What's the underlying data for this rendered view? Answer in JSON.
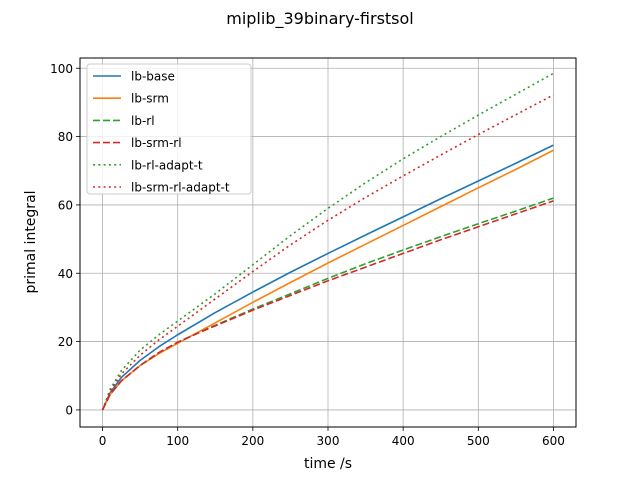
{
  "chart_data": {
    "type": "line",
    "title": "miplib_39binary-firstsol",
    "xlabel": "time /s",
    "ylabel": "primal integral",
    "xlim": [
      -30,
      630
    ],
    "ylim": [
      -5,
      103
    ],
    "xticks": [
      0,
      100,
      200,
      300,
      400,
      500,
      600
    ],
    "yticks": [
      0,
      20,
      40,
      60,
      80,
      100
    ],
    "grid": true,
    "legend_position": "top-left",
    "series": [
      {
        "name": "lb-base",
        "color": "#1f77b4",
        "style": "solid",
        "x": [
          0,
          10,
          25,
          50,
          75,
          100,
          150,
          200,
          250,
          300,
          350,
          400,
          450,
          500,
          550,
          600
        ],
        "y": [
          0,
          5,
          9.5,
          14.5,
          18.5,
          22,
          28.5,
          34.5,
          40.3,
          45.8,
          51.2,
          56.5,
          61.8,
          67,
          72.2,
          77.5
        ]
      },
      {
        "name": "lb-srm",
        "color": "#ff7f0e",
        "style": "solid",
        "x": [
          0,
          10,
          25,
          50,
          75,
          100,
          150,
          200,
          250,
          300,
          350,
          400,
          450,
          500,
          550,
          600
        ],
        "y": [
          0,
          4.5,
          8.5,
          13,
          16.5,
          19.5,
          25.5,
          31.5,
          37.3,
          43,
          48.5,
          54,
          59.5,
          65,
          70.4,
          76
        ]
      },
      {
        "name": "lb-rl",
        "color": "#2ca02c",
        "style": "dashed",
        "x": [
          0,
          10,
          25,
          50,
          75,
          100,
          125,
          150,
          200,
          250,
          300,
          350,
          400,
          450,
          500,
          550,
          600
        ],
        "y": [
          0,
          4.5,
          8.5,
          13,
          16.8,
          19.8,
          22.3,
          24.8,
          29.5,
          34,
          38.5,
          42.8,
          46.8,
          50.7,
          54.5,
          58.2,
          62
        ]
      },
      {
        "name": "lb-srm-rl",
        "color": "#d62728",
        "style": "dashed",
        "x": [
          0,
          10,
          25,
          50,
          75,
          100,
          125,
          150,
          200,
          250,
          300,
          350,
          400,
          450,
          500,
          550,
          600
        ],
        "y": [
          0,
          4.5,
          8.5,
          13,
          16.8,
          19.8,
          22.3,
          24.6,
          29.2,
          33.5,
          37.8,
          41.8,
          45.8,
          49.8,
          53.6,
          57.4,
          61.2
        ]
      },
      {
        "name": "lb-rl-adapt-t",
        "color": "#2ca02c",
        "style": "dotted",
        "x": [
          0,
          10,
          25,
          50,
          75,
          100,
          150,
          200,
          250,
          300,
          350,
          400,
          450,
          500,
          550,
          600
        ],
        "y": [
          0,
          6,
          11.5,
          17.5,
          22,
          26,
          34,
          42.5,
          51,
          59,
          66.5,
          73.5,
          80,
          86.3,
          92.4,
          98.5
        ]
      },
      {
        "name": "lb-srm-rl-adapt-t",
        "color": "#d62728",
        "style": "dotted",
        "x": [
          0,
          10,
          25,
          50,
          75,
          100,
          150,
          200,
          250,
          300,
          350,
          400,
          450,
          500,
          550,
          600
        ],
        "y": [
          0,
          5.5,
          10.5,
          16,
          20.5,
          24.5,
          32.5,
          40.5,
          48.3,
          55.5,
          62.2,
          68.5,
          74.6,
          80.6,
          86.4,
          92.2
        ]
      }
    ]
  }
}
